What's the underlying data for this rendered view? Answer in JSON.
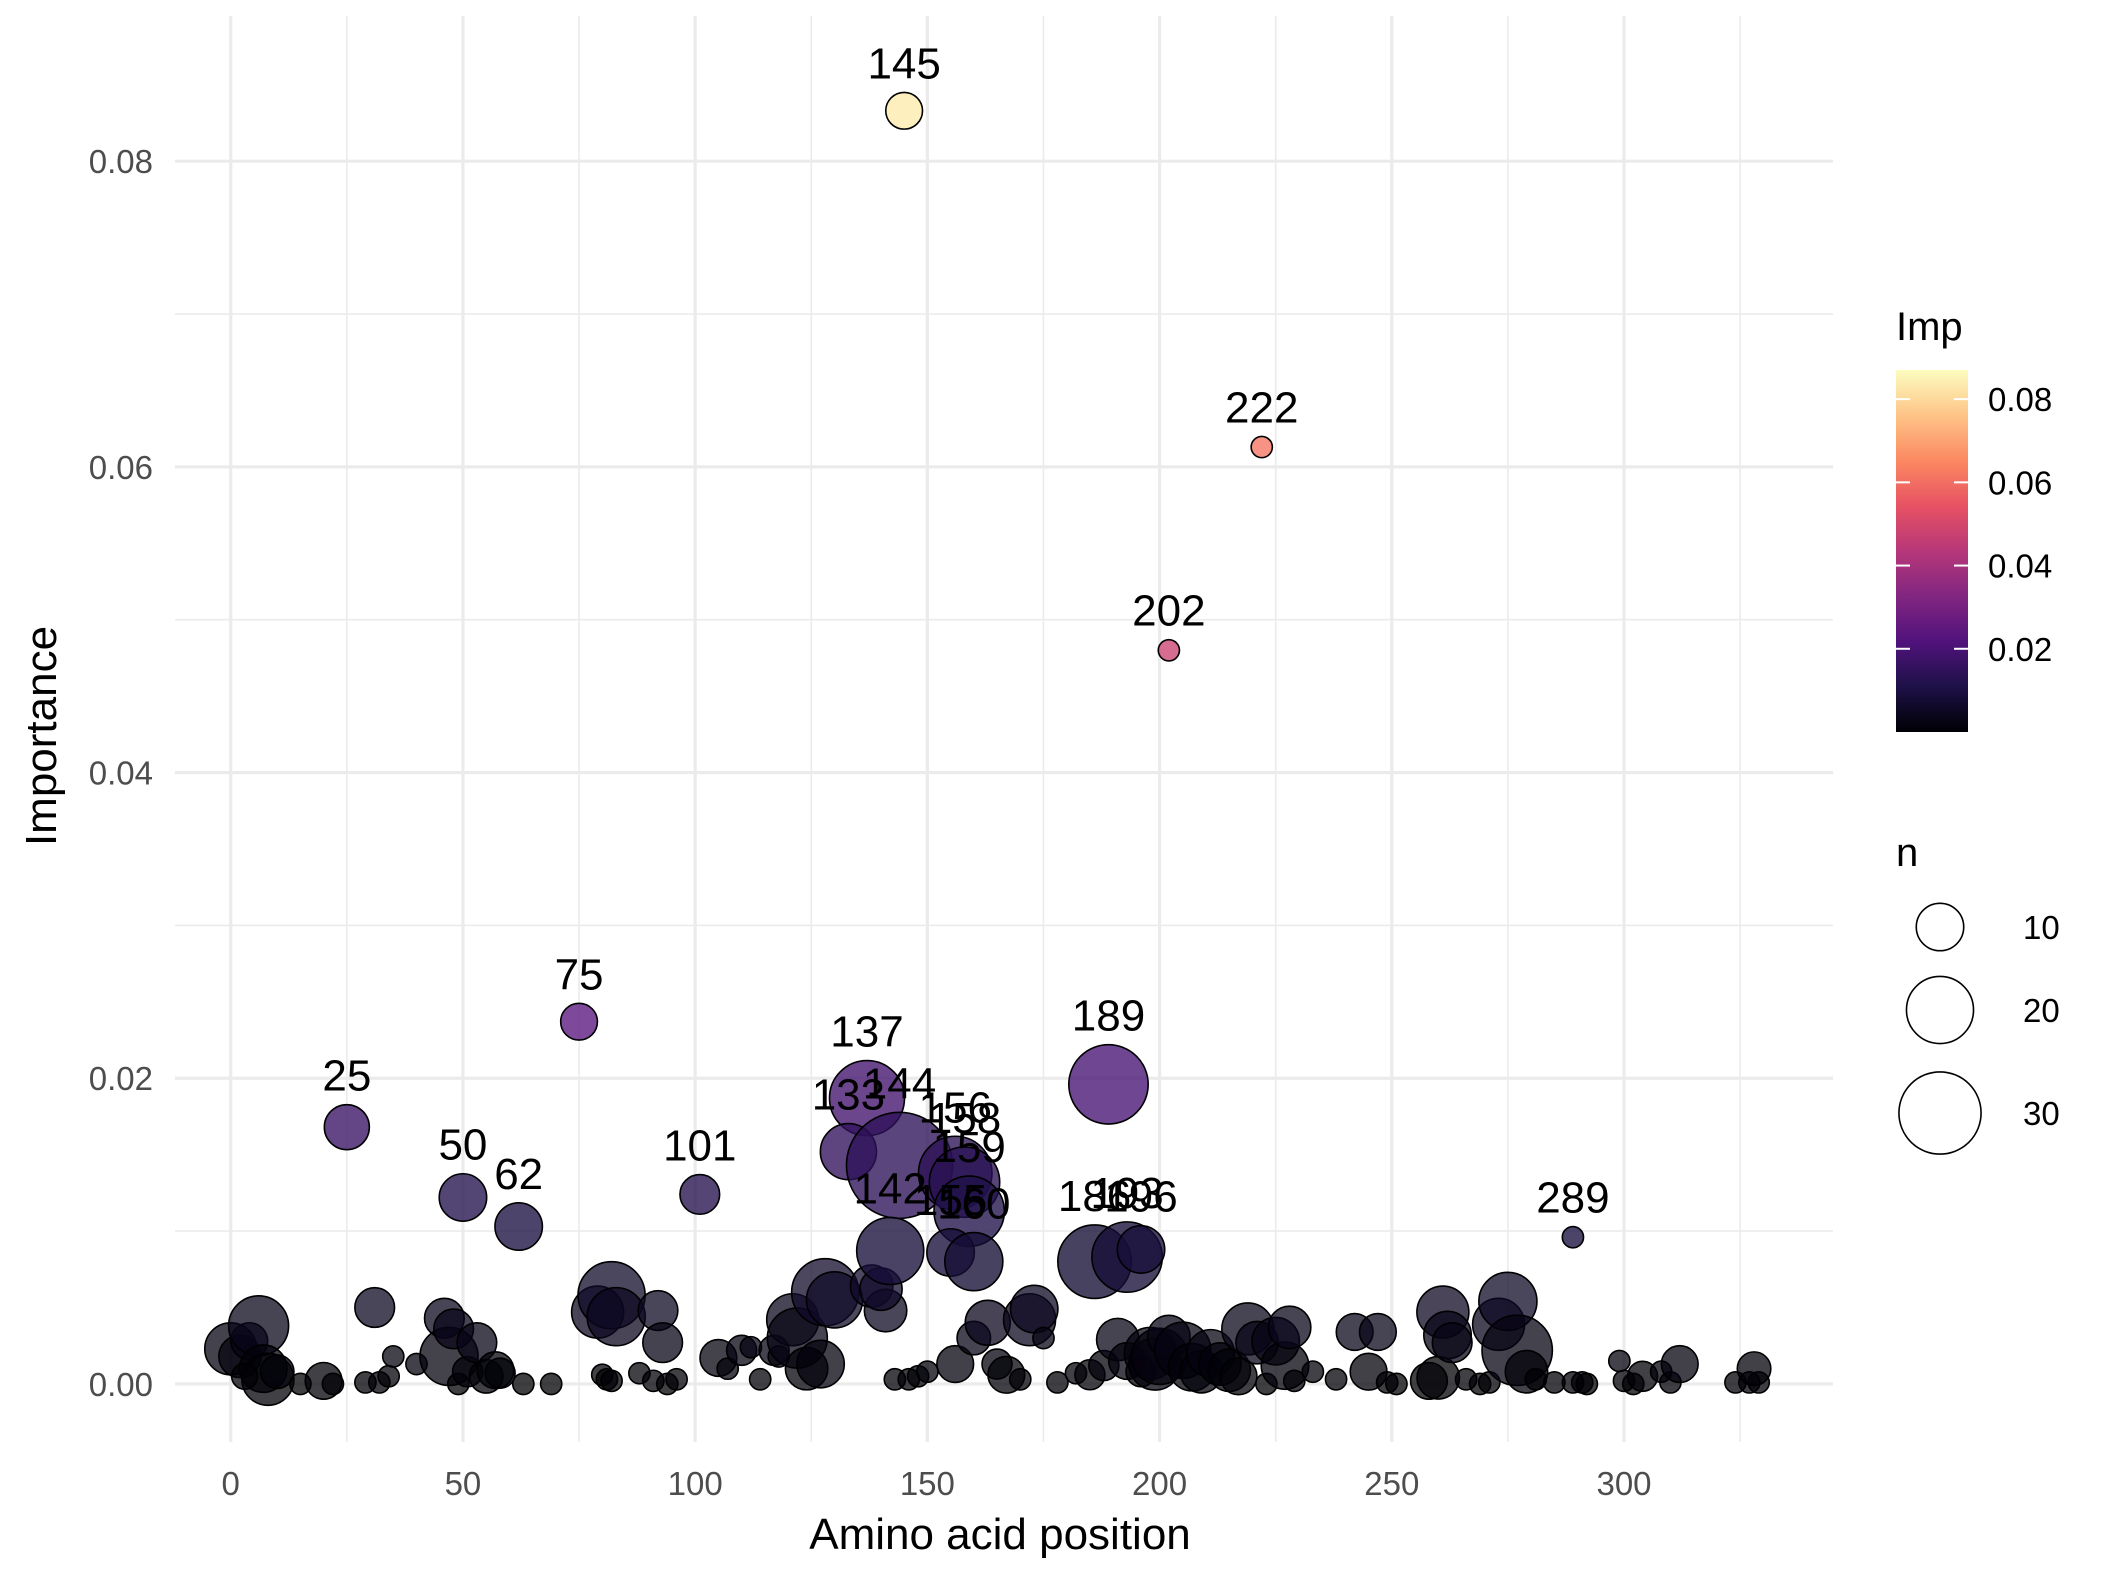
{
  "chart_data": {
    "type": "scatter",
    "xlabel": "Amino acid position",
    "ylabel": "Importance",
    "xlim": [
      -12,
      345
    ],
    "ylim": [
      -0.0038,
      0.0895
    ],
    "x_ticks": [
      0,
      50,
      100,
      150,
      200,
      250,
      300
    ],
    "x_tick_labels": [
      "0",
      "50",
      "100",
      "150",
      "200",
      "250",
      "300"
    ],
    "y_ticks": [
      0.0,
      0.02,
      0.04,
      0.06,
      0.08
    ],
    "y_tick_labels": [
      "0.00",
      "0.02",
      "0.04",
      "0.06",
      "0.08"
    ],
    "grid": true,
    "color_legend": {
      "title": "Imp",
      "ticks": [
        0.02,
        0.04,
        0.06,
        0.08
      ],
      "tick_labels": [
        "0.02",
        "0.04",
        "0.06",
        "0.08"
      ],
      "range": [
        0.0,
        0.087
      ],
      "colormap": [
        "#000004",
        "#1d1147",
        "#51127c",
        "#822681",
        "#b73779",
        "#e75263",
        "#fc8961",
        "#fec488",
        "#fcfdbf"
      ]
    },
    "size_legend": {
      "title": "n",
      "values": [
        10,
        20,
        30
      ],
      "labels": [
        "10",
        "20",
        "30"
      ]
    },
    "legend_position": "right",
    "labeled_points": [
      {
        "label": "145",
        "x": 145,
        "y": 0.0833,
        "n": 6
      },
      {
        "label": "222",
        "x": 222,
        "y": 0.0613,
        "n": 2
      },
      {
        "label": "202",
        "x": 202,
        "y": 0.048,
        "n": 2
      },
      {
        "label": "75",
        "x": 75,
        "y": 0.0237,
        "n": 6
      },
      {
        "label": "25",
        "x": 25,
        "y": 0.0168,
        "n": 9
      },
      {
        "label": "189",
        "x": 189,
        "y": 0.0196,
        "n": 28
      },
      {
        "label": "137",
        "x": 137,
        "y": 0.0187,
        "n": 25
      },
      {
        "label": "133",
        "x": 133,
        "y": 0.0152,
        "n": 14
      },
      {
        "label": "144",
        "x": 144,
        "y": 0.0143,
        "n": 50
      },
      {
        "label": "156",
        "x": 156,
        "y": 0.0138,
        "n": 24
      },
      {
        "label": "158",
        "x": 158,
        "y": 0.0132,
        "n": 22
      },
      {
        "label": "159",
        "x": 159,
        "y": 0.0113,
        "n": 22
      },
      {
        "label": "142",
        "x": 142,
        "y": 0.0087,
        "n": 20
      },
      {
        "label": "155",
        "x": 155,
        "y": 0.0086,
        "n": 10
      },
      {
        "label": "160",
        "x": 160,
        "y": 0.008,
        "n": 15
      },
      {
        "label": "101",
        "x": 101,
        "y": 0.0124,
        "n": 7
      },
      {
        "label": "50",
        "x": 50,
        "y": 0.0122,
        "n": 10
      },
      {
        "label": "62",
        "x": 62,
        "y": 0.0103,
        "n": 10
      },
      {
        "label": "186",
        "x": 186,
        "y": 0.008,
        "n": 24
      },
      {
        "label": "193",
        "x": 193,
        "y": 0.0083,
        "n": 22
      },
      {
        "label": "196",
        "x": 196,
        "y": 0.0088,
        "n": 10
      },
      {
        "label": "289",
        "x": 289,
        "y": 0.0096,
        "n": 2
      }
    ],
    "background_points": [
      [
        0,
        0.0023,
        12
      ],
      [
        2,
        0.0018,
        8
      ],
      [
        4,
        0.0028,
        6
      ],
      [
        6,
        0.0038,
        16
      ],
      [
        7,
        0.001,
        10
      ],
      [
        8,
        0.0003,
        12
      ],
      [
        10,
        0.0008,
        5
      ],
      [
        3,
        0.0005,
        3
      ],
      [
        15,
        0.0,
        2
      ],
      [
        20,
        0.0002,
        6
      ],
      [
        22,
        0.0,
        2
      ],
      [
        29,
        0.0001,
        2
      ],
      [
        31,
        0.005,
        7
      ],
      [
        32,
        0.0001,
        2
      ],
      [
        34,
        0.0005,
        2
      ],
      [
        35,
        0.0018,
        2
      ],
      [
        40,
        0.0013,
        2
      ],
      [
        46,
        0.0043,
        7
      ],
      [
        47,
        0.0018,
        15
      ],
      [
        48,
        0.0036,
        7
      ],
      [
        49,
        0.0,
        2
      ],
      [
        51,
        0.0008,
        4
      ],
      [
        53,
        0.0027,
        7
      ],
      [
        55,
        0.0005,
        5
      ],
      [
        57,
        0.0009,
        6
      ],
      [
        58,
        0.0007,
        4
      ],
      [
        63,
        0.0,
        2
      ],
      [
        69,
        0.0,
        2
      ],
      [
        79,
        0.0047,
        12
      ],
      [
        80,
        0.0006,
        2
      ],
      [
        81,
        0.0003,
        2
      ],
      [
        82,
        0.0058,
        20
      ],
      [
        83,
        0.0044,
        15
      ],
      [
        82,
        0.0002,
        2
      ],
      [
        88,
        0.0007,
        2
      ],
      [
        91,
        0.0002,
        2
      ],
      [
        92,
        0.0048,
        7
      ],
      [
        93,
        0.0027,
        7
      ],
      [
        94,
        0.0,
        2
      ],
      [
        96,
        0.0003,
        2
      ],
      [
        105,
        0.0017,
        6
      ],
      [
        107,
        0.001,
        2
      ],
      [
        110,
        0.0022,
        4
      ],
      [
        112,
        0.0024,
        2
      ],
      [
        114,
        0.0003,
        2
      ],
      [
        117,
        0.0022,
        4
      ],
      [
        118,
        0.0018,
        2
      ],
      [
        121,
        0.0042,
        12
      ],
      [
        122,
        0.003,
        16
      ],
      [
        124,
        0.001,
        8
      ],
      [
        127,
        0.0013,
        10
      ],
      [
        128,
        0.006,
        20
      ],
      [
        130,
        0.0055,
        14
      ],
      [
        138,
        0.0064,
        8
      ],
      [
        141,
        0.0048,
        8
      ],
      [
        140,
        0.0062,
        8
      ],
      [
        143,
        0.0003,
        2
      ],
      [
        146,
        0.0003,
        2
      ],
      [
        148,
        0.0005,
        2
      ],
      [
        150,
        0.0008,
        2
      ],
      [
        156,
        0.0013,
        6
      ],
      [
        160,
        0.003,
        5
      ],
      [
        163,
        0.004,
        9
      ],
      [
        165,
        0.0013,
        4
      ],
      [
        167,
        0.0006,
        6
      ],
      [
        170,
        0.0003,
        2
      ],
      [
        172,
        0.0042,
        12
      ],
      [
        173,
        0.0049,
        10
      ],
      [
        175,
        0.003,
        2
      ],
      [
        178,
        0.0001,
        2
      ],
      [
        182,
        0.0007,
        2
      ],
      [
        185,
        0.0006,
        4
      ],
      [
        188,
        0.0012,
        4
      ],
      [
        191,
        0.0029,
        8
      ],
      [
        193,
        0.0015,
        6
      ],
      [
        196,
        0.0008,
        4
      ],
      [
        198,
        0.002,
        12
      ],
      [
        199,
        0.0013,
        12
      ],
      [
        200,
        0.0018,
        14
      ],
      [
        202,
        0.0031,
        8
      ],
      [
        205,
        0.0022,
        14
      ],
      [
        207,
        0.0011,
        10
      ],
      [
        209,
        0.0008,
        8
      ],
      [
        211,
        0.002,
        10
      ],
      [
        213,
        0.0013,
        8
      ],
      [
        215,
        0.0009,
        8
      ],
      [
        217,
        0.0005,
        6
      ],
      [
        219,
        0.0036,
        12
      ],
      [
        221,
        0.0027,
        8
      ],
      [
        223,
        0.0,
        2
      ],
      [
        225,
        0.0028,
        10
      ],
      [
        227,
        0.0012,
        10
      ],
      [
        228,
        0.0037,
        8
      ],
      [
        229,
        0.0002,
        2
      ],
      [
        233,
        0.0008,
        2
      ],
      [
        238,
        0.0003,
        2
      ],
      [
        242,
        0.0034,
        6
      ],
      [
        245,
        0.0008,
        6
      ],
      [
        247,
        0.0034,
        6
      ],
      [
        249,
        0.0001,
        2
      ],
      [
        251,
        0.0,
        2
      ],
      [
        258,
        0.0002,
        6
      ],
      [
        260,
        0.0004,
        8
      ],
      [
        261,
        0.0047,
        12
      ],
      [
        262,
        0.0032,
        10
      ],
      [
        263,
        0.0027,
        7
      ],
      [
        266,
        0.0003,
        2
      ],
      [
        269,
        0.0,
        2
      ],
      [
        271,
        0.0001,
        2
      ],
      [
        273,
        0.0039,
        12
      ],
      [
        275,
        0.0054,
        15
      ],
      [
        277,
        0.0022,
        22
      ],
      [
        279,
        0.0008,
        8
      ],
      [
        281,
        0.0003,
        2
      ],
      [
        285,
        0.0001,
        2
      ],
      [
        289,
        0.0001,
        2
      ],
      [
        291,
        0.0001,
        2
      ],
      [
        292,
        0.0,
        2
      ],
      [
        299,
        0.0015,
        2
      ],
      [
        300,
        0.0002,
        2
      ],
      [
        302,
        0.0,
        2
      ],
      [
        304,
        0.0005,
        4
      ],
      [
        308,
        0.0008,
        2
      ],
      [
        310,
        0.0001,
        2
      ],
      [
        312,
        0.0013,
        6
      ],
      [
        324,
        0.0001,
        2
      ],
      [
        327,
        0.0001,
        2
      ],
      [
        329,
        0.0001,
        2
      ],
      [
        328,
        0.001,
        5
      ]
    ]
  }
}
